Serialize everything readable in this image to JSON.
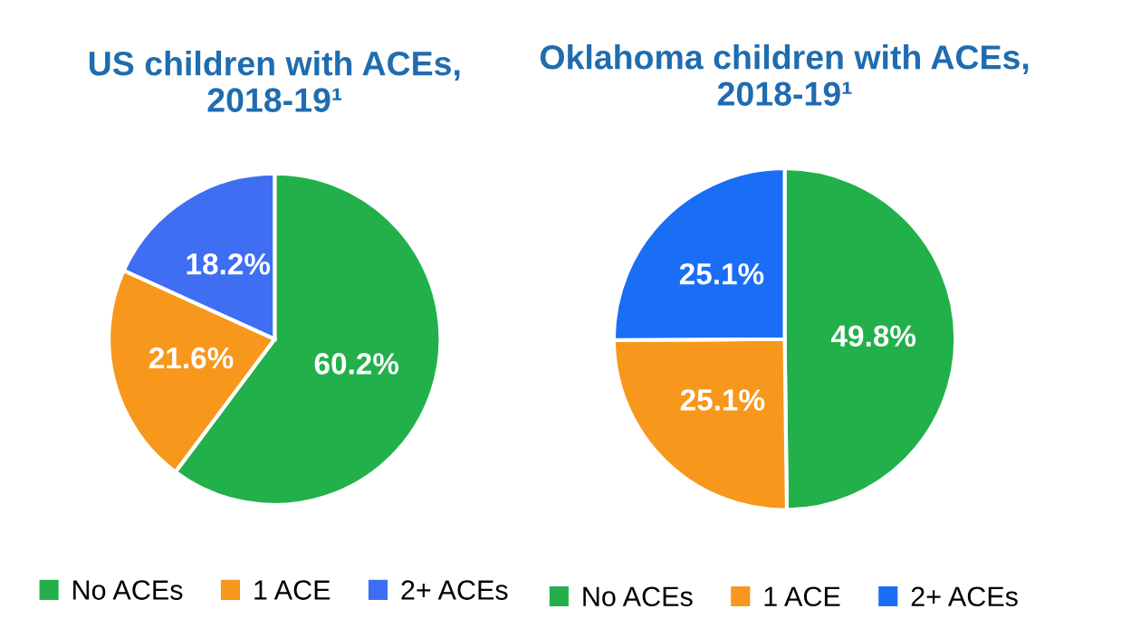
{
  "chart_data": [
    {
      "type": "pie",
      "title": "US children with ACEs,\n2018-19¹",
      "categories": [
        "No ACEs",
        "1 ACE",
        "2+ ACEs"
      ],
      "values": [
        60.2,
        21.6,
        18.2
      ],
      "value_labels": [
        "60.2%",
        "21.6%",
        "18.2%"
      ],
      "colors": [
        "#22b04b",
        "#f7981d",
        "#3f6ef2"
      ],
      "legend": "bottom"
    },
    {
      "type": "pie",
      "title": "Oklahoma children with ACEs,\n2018-19¹",
      "categories": [
        "No ACEs",
        "1 ACE",
        "2+ ACEs"
      ],
      "values": [
        49.8,
        25.1,
        25.1
      ],
      "value_labels": [
        "49.8%",
        "25.1%",
        "25.1%"
      ],
      "colors": [
        "#22b04b",
        "#f7981d",
        "#1a6ef5"
      ],
      "legend": "bottom"
    }
  ]
}
